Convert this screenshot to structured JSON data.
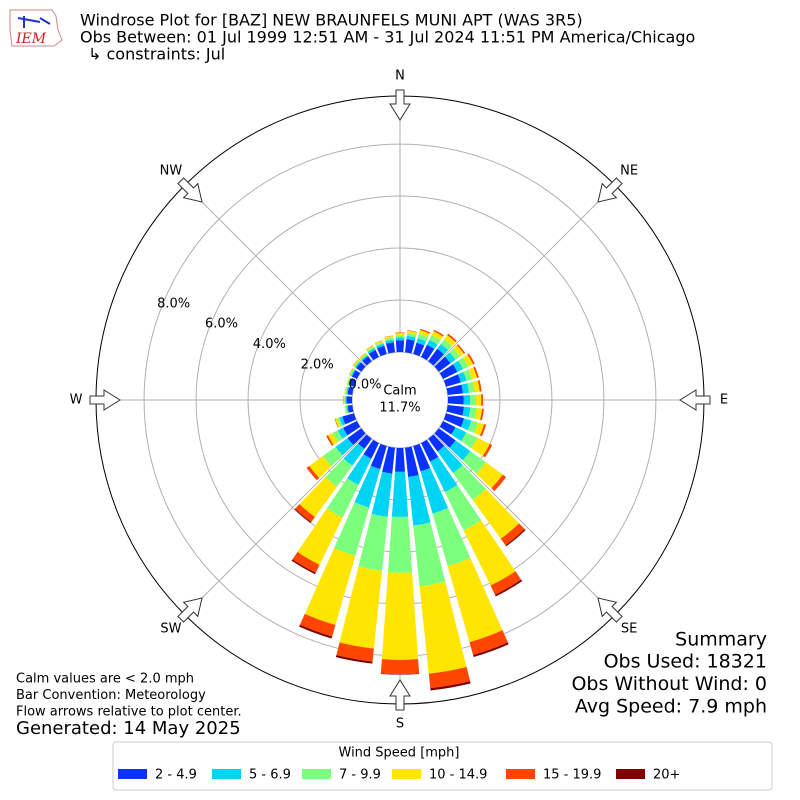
{
  "chart_data": {
    "type": "windrose",
    "title": "Windrose Plot for [BAZ] NEW BRAUNFELS MUNI APT (WAS 3R5)",
    "subtitle": "Obs Between: 01 Jul 1999 12:51 AM - 31 Jul 2024 11:51 PM America/Chicago",
    "constraint": "↳ constraints: Jul",
    "logo_text": "IEM",
    "compass_labels": [
      "N",
      "NE",
      "E",
      "SE",
      "S",
      "SW",
      "W",
      "NW"
    ],
    "categories": [
      null,
      null,
      null,
      null,
      null,
      null,
      null,
      null,
      null,
      null,
      null,
      null,
      null,
      null,
      null,
      null,
      null,
      null,
      null,
      null,
      null,
      null,
      null,
      null,
      null,
      null,
      null,
      null,
      null,
      null,
      null,
      null,
      null,
      null,
      null,
      null
    ],
    "series": [
      {
        "name": "2 - 4.9",
        "color": "#0a32ff",
        "values": [
          0.45,
          0.51,
          0.45,
          0.52,
          0.59,
          0.56,
          0.61,
          0.59,
          0.59,
          0.61,
          0.63,
          0.72,
          0.53,
          0.8,
          0.61,
          0.79,
          1.01,
          1.13,
          0.92,
          1.0,
          0.92,
          0.67,
          0.48,
          0.65,
          0.59,
          0.46,
          0.18,
          0.21,
          0.18,
          0.18,
          0.21,
          0.24,
          0.24,
          0.3,
          0.33,
          0.39
        ]
      },
      {
        "name": "5 - 6.9",
        "color": "#00d4f5",
        "values": [
          0.11,
          0.13,
          0.18,
          0.21,
          0.23,
          0.23,
          0.24,
          0.23,
          0.23,
          0.24,
          0.25,
          0.29,
          0.46,
          0.7,
          1.02,
          1.31,
          1.69,
          1.88,
          1.73,
          1.67,
          1.54,
          1.12,
          0.8,
          0.57,
          0.23,
          0.12,
          0.05,
          0.05,
          0.05,
          0.05,
          0.05,
          0.06,
          0.06,
          0.08,
          0.08,
          0.1
        ]
      },
      {
        "name": "7 - 9.9",
        "color": "#7cff7c",
        "values": [
          0.09,
          0.1,
          0.17,
          0.2,
          0.22,
          0.21,
          0.23,
          0.22,
          0.22,
          0.23,
          0.24,
          0.27,
          0.48,
          0.74,
          1.28,
          1.64,
          2.11,
          2.35,
          2.15,
          2.09,
          1.93,
          1.4,
          1.0,
          0.6,
          0.22,
          0.09,
          0.04,
          0.04,
          0.04,
          0.04,
          0.04,
          0.05,
          0.05,
          0.06,
          0.07,
          0.08
        ]
      },
      {
        "name": "10 - 14.9",
        "color": "#ffe500",
        "values": [
          0.08,
          0.09,
          0.15,
          0.17,
          0.2,
          0.19,
          0.2,
          0.2,
          0.2,
          0.2,
          0.21,
          0.24,
          0.53,
          0.8,
          1.84,
          2.36,
          3.04,
          3.38,
          3.35,
          3.01,
          2.77,
          2.02,
          1.44,
          0.65,
          0.2,
          0.08,
          0.03,
          0.04,
          0.03,
          0.03,
          0.04,
          0.04,
          0.04,
          0.05,
          0.06,
          0.07
        ]
      },
      {
        "name": "15 - 19.9",
        "color": "#ff4500",
        "values": [
          0.02,
          0.02,
          0.05,
          0.06,
          0.07,
          0.06,
          0.07,
          0.07,
          0.07,
          0.07,
          0.07,
          0.08,
          0.1,
          0.16,
          0.31,
          0.39,
          0.51,
          0.56,
          0.55,
          0.5,
          0.46,
          0.34,
          0.24,
          0.13,
          0.07,
          0.02,
          0,
          0.01,
          0,
          0,
          0.01,
          0.01,
          0.01,
          0.01,
          0.01,
          0.01
        ]
      },
      {
        "name": "20+",
        "color": "#800000",
        "values": [
          0,
          0,
          0,
          0,
          0,
          0,
          0,
          0,
          0,
          0,
          0,
          0,
          0,
          0,
          0.05,
          0.07,
          0.08,
          0.09,
          0.02,
          0.08,
          0.08,
          0.06,
          0.04,
          0,
          0,
          0,
          0,
          0,
          0,
          0,
          0,
          0,
          0,
          0,
          0,
          0
        ]
      }
    ],
    "rlim": [
      0,
      9.85
    ],
    "rticks": [
      {
        "value": 0,
        "label": "0.0%"
      },
      {
        "value": 2,
        "label": "2.0%"
      },
      {
        "value": 4,
        "label": "4.0%"
      },
      {
        "value": 6,
        "label": "6.0%"
      },
      {
        "value": 8,
        "label": "8.0%"
      }
    ],
    "grid": true,
    "calm": {
      "label": "Calm",
      "value": 11.7,
      "value_label": "11.7%"
    },
    "legend_title": "Wind Speed [mph]",
    "notes": [
      "Calm values are < 2.0 mph",
      "Bar Convention: Meteorology",
      "Flow arrows relative to plot center."
    ],
    "generated": "Generated: 14 May 2025",
    "summary": {
      "title": "Summary",
      "lines": [
        "Obs Used: 18321",
        "Obs Without Wind: 0",
        "Avg Speed: 7.9 mph"
      ]
    }
  }
}
